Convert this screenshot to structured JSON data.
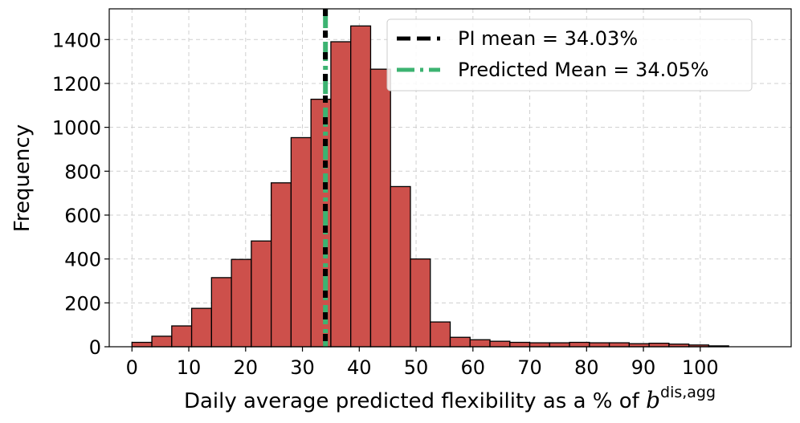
{
  "chart_data": {
    "type": "bar",
    "subtype": "histogram",
    "bin_width": 3.5,
    "bin_start": 0,
    "values": [
      20,
      48,
      95,
      175,
      315,
      398,
      482,
      747,
      953,
      1128,
      1390,
      1462,
      1265,
      730,
      400,
      113,
      43,
      32,
      25,
      20,
      18,
      18,
      20,
      18,
      18,
      14,
      16,
      12,
      8,
      4
    ],
    "bar_color": "#cd504b",
    "edge_color": "#000000",
    "xlabel": "Daily average predicted flexibility as a % of ",
    "xlabel_math": "b",
    "xlabel_sup": "dis,agg",
    "ylabel": "Frequency",
    "xlim": [
      -4,
      116
    ],
    "ylim": [
      0,
      1540
    ],
    "xticks": [
      0,
      10,
      20,
      30,
      40,
      50,
      60,
      70,
      80,
      90,
      100
    ],
    "xtick_labels": [
      "0",
      "10",
      "20",
      "30",
      "40",
      "50",
      "60",
      "70",
      "80",
      "90",
      "100"
    ],
    "yticks": [
      0,
      200,
      400,
      600,
      800,
      1000,
      1200,
      1400
    ],
    "ytick_labels": [
      "0",
      "200",
      "400",
      "600",
      "800",
      "1000",
      "1200",
      "1400"
    ],
    "grid": true,
    "vlines": [
      {
        "name": "PI mean",
        "x": 34.03,
        "color": "#000000",
        "style": "dashed",
        "label": "PI mean = 34.03%"
      },
      {
        "name": "Predicted Mean",
        "x": 34.05,
        "color": "#3cb371",
        "style": "dashdot",
        "label": "Predicted Mean = 34.05%"
      }
    ],
    "legend_position": "top-right"
  }
}
